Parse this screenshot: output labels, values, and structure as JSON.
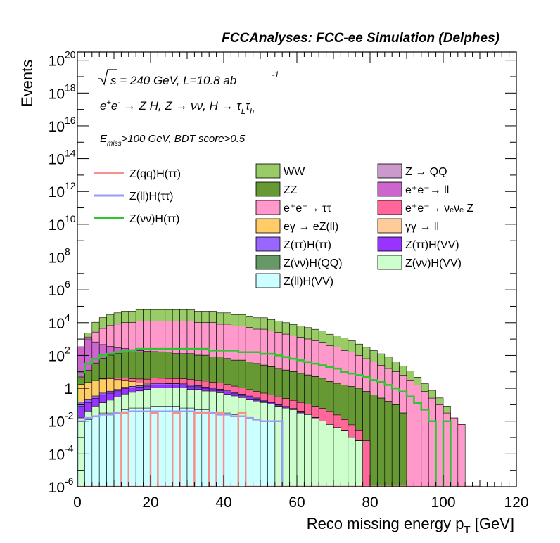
{
  "chart_data": {
    "type": "area",
    "title": "FCCAnalyses: FCC-ee Simulation (Delphes)",
    "xlabel": "Reco missing energy p",
    "xlabel_sub": "T",
    "xlabel_unit": "[GeV]",
    "ylabel": "Events",
    "xlim": [
      0,
      120
    ],
    "ylim_log10": [
      -6,
      20.5
    ],
    "y_scale": "log",
    "grid": false,
    "x_ticks": [
      "0",
      "20",
      "40",
      "60",
      "80",
      "100",
      "120"
    ],
    "y_tick_labels": [
      {
        "base": "10",
        "exp": "20",
        "log10": 20
      },
      {
        "base": "10",
        "exp": "18",
        "log10": 18
      },
      {
        "base": "10",
        "exp": "16",
        "log10": 16
      },
      {
        "base": "10",
        "exp": "14",
        "log10": 14
      },
      {
        "base": "10",
        "exp": "12",
        "log10": 12
      },
      {
        "base": "10",
        "exp": "10",
        "log10": 10
      },
      {
        "base": "10",
        "exp": "8",
        "log10": 8
      },
      {
        "base": "10",
        "exp": "6",
        "log10": 6
      },
      {
        "base": "10",
        "exp": "4",
        "log10": 4
      },
      {
        "base": "10",
        "exp": "2",
        "log10": 2
      },
      {
        "base": "1",
        "exp": "",
        "log10": 0
      },
      {
        "base": "10",
        "exp": "-2",
        "log10": -2
      },
      {
        "base": "10",
        "exp": "-4",
        "log10": -4
      },
      {
        "base": "10",
        "exp": "-6",
        "log10": -6
      }
    ],
    "annotations": {
      "sqrt": "s",
      "energy_lumi": " = 240 GeV, L=10.8 ab",
      "lumi_exp": "-1",
      "process": "e⁺e⁻ → Z H, Z → νν, H → τ_L τ_h",
      "cuts": "E_miss>100 GeV, BDT score>0.5"
    },
    "legend_lines": [
      {
        "name": "Z(qq)H(ττ)",
        "color": "#f5908c"
      },
      {
        "name": "Z(ll)H(ττ)",
        "color": "#9b9bf3"
      },
      {
        "name": "Z(νν)H(ττ)",
        "color": "#2ec62e"
      }
    ],
    "legend_fills": [
      {
        "name": "WW",
        "color": "#99cc66"
      },
      {
        "name": "Z → QQ",
        "color": "#cc99cc"
      },
      {
        "name": "ZZ",
        "color": "#669933"
      },
      {
        "name": "e⁺e⁻→ ll",
        "color": "#cc66cc"
      },
      {
        "name": "e⁺e⁻→ ττ",
        "color": "#ff99cc"
      },
      {
        "name": "e⁺e⁻→ νₑνₑ Z",
        "color": "#ff6699"
      },
      {
        "name": "eγ → eZ(ll)",
        "color": "#ffcc66"
      },
      {
        "name": "γγ → ll",
        "color": "#ffcc99"
      },
      {
        "name": "Z(ττ)H(ττ)",
        "color": "#9966ff"
      },
      {
        "name": "Z(ττ)H(VV)",
        "color": "#9933ff"
      },
      {
        "name": "Z(νν)H(QQ)",
        "color": "#669966"
      },
      {
        "name": "Z(νν)H(VV)",
        "color": "#ccffcc"
      },
      {
        "name": "Z(ll)H(VV)",
        "color": "#ccffff"
      }
    ],
    "x": [
      0,
      2,
      4,
      6,
      8,
      10,
      12,
      14,
      16,
      18,
      20,
      22,
      24,
      26,
      28,
      30,
      32,
      34,
      36,
      38,
      40,
      42,
      44,
      46,
      48,
      50,
      52,
      54,
      56,
      58,
      60,
      62,
      64,
      66,
      68,
      70,
      72,
      74,
      76,
      78,
      80,
      82,
      84,
      86,
      88,
      90,
      92,
      94,
      96,
      98,
      100,
      102,
      104,
      106,
      108
    ],
    "stack": [
      {
        "name": "Z(ll)H(VV)",
        "color": "#ccffff",
        "log10": [
          -6,
          -1.9,
          -1.7,
          -1.5,
          -1.5,
          -1.4,
          -1.3,
          -1.2,
          -1.2,
          -1.2,
          -1.1,
          -1.1,
          -1.1,
          -1.1,
          -1.2,
          -1.2,
          -1.3,
          -1.3,
          -1.4,
          -1.5,
          -1.5,
          -1.6,
          -1.7,
          -1.8,
          -2,
          -2,
          -2,
          -6,
          -6,
          -6,
          -6,
          -6,
          -6,
          -6,
          -6,
          -6,
          -6,
          -6,
          -6,
          -6,
          -6,
          -6,
          -6,
          -6,
          -6,
          -6,
          -6,
          -6,
          -6,
          -6,
          -6,
          -6,
          -6,
          -6,
          -6
        ]
      },
      {
        "name": "Z(νν)H(VV)",
        "color": "#ccffcc",
        "log10": [
          -1.8,
          -1.6,
          -1.2,
          -1,
          -0.8,
          -0.6,
          -0.4,
          -0.3,
          -0.2,
          -0.1,
          0,
          0,
          0,
          0,
          0,
          -0.1,
          -0.1,
          -0.2,
          -0.2,
          -0.3,
          -0.4,
          -0.5,
          -0.6,
          -0.7,
          -0.8,
          -0.9,
          -1,
          -1.1,
          -1.2,
          -1.3,
          -1.5,
          -1.6,
          -1.8,
          -2,
          -2.2,
          -2.4,
          -2.6,
          -3,
          -3.2,
          -6,
          -6,
          -6,
          -6,
          -6,
          -6,
          -6,
          -6,
          -6,
          -6,
          -6,
          -6,
          -6,
          -6,
          -6,
          -6
        ]
      },
      {
        "name": "Z(ττ)H(VV)",
        "color": "#9933ff",
        "log10": [
          -1.2,
          -1,
          -0.8,
          -0.6,
          -0.5,
          -0.4,
          -0.3,
          -0.3,
          -0.3,
          -0.3,
          -0.3,
          -0.3,
          -0.3,
          -0.3,
          -0.3,
          -0.4,
          -0.4,
          -0.5,
          -0.6,
          -0.7,
          -0.8,
          -0.9,
          -1,
          -1.1,
          -1.3,
          -1.5,
          -1.6,
          -1.8,
          -2,
          -2.2,
          -2.4,
          -2.6,
          -3,
          -6,
          -6,
          -6,
          -6,
          -6,
          -6,
          -6,
          -6,
          -6,
          -6,
          -6,
          -6,
          -6,
          -6,
          -6,
          -6,
          -6,
          -6,
          -6,
          -6,
          -6,
          -6
        ]
      },
      {
        "name": "Z(ττ)H(ττ)",
        "color": "#9966ff",
        "log10": [
          -1.2,
          -1.1,
          -1,
          -0.9,
          -0.8,
          -0.8,
          -0.7,
          -0.6,
          -0.6,
          -0.5,
          -0.4,
          -0.4,
          -0.5,
          -0.5,
          -0.6,
          -0.6,
          -0.7,
          -0.8,
          -0.8,
          -0.9,
          -1,
          -1.1,
          -1.2,
          -1.4,
          -1.5,
          -1.7,
          -1.9,
          -2.1,
          -2.3,
          -2.6,
          -3,
          -6,
          -6,
          -6,
          -6,
          -6,
          -6,
          -6,
          -6,
          -6,
          -6,
          -6,
          -6,
          -6,
          -6,
          -6,
          -6,
          -6,
          -6,
          -6,
          -6,
          -6,
          -6,
          -6,
          -6
        ]
      },
      {
        "name": "eγ → eZ(ll)",
        "color": "#ffcc66",
        "log10": [
          0.2,
          0.3,
          0.4,
          0.5,
          0.5,
          0.4,
          0.3,
          0.1,
          -0.2,
          -0.5,
          -0.8,
          -1.1,
          -1.4,
          -1.8,
          -2.2,
          -6,
          -6,
          -6,
          -6,
          -6,
          -6,
          -6,
          -6,
          -6,
          -6,
          -6,
          -6,
          -6,
          -6,
          -6,
          -6,
          -6,
          -6,
          -6,
          -6,
          -6,
          -6,
          -6,
          -6,
          -6,
          -6,
          -6,
          -6,
          -6,
          -6,
          -6,
          -6,
          -6,
          -6,
          -6,
          -6,
          -6,
          -6,
          -6,
          -6
        ]
      },
      {
        "name": "e⁺e⁻→ νₑνₑ Z",
        "color": "#ff6699",
        "log10": [
          -2,
          -1.5,
          -1,
          -0.6,
          -0.3,
          -0.1,
          0,
          0.1,
          0.2,
          0.2,
          0.3,
          0.3,
          0.3,
          0.3,
          0.3,
          0.3,
          0.2,
          0.2,
          0.1,
          0.1,
          0,
          -0.1,
          -0.2,
          -0.3,
          -0.4,
          -0.5,
          -0.6,
          -0.7,
          -0.8,
          -0.9,
          -1,
          -1.1,
          -1.2,
          -1.3,
          -1.5,
          -1.7,
          -2,
          -2.3,
          -2.7,
          -3.2,
          -6,
          -6,
          -6,
          -6,
          -6,
          -6,
          -6,
          -6,
          -6,
          -6,
          -6,
          -6,
          -6,
          -6,
          -6
        ]
      },
      {
        "name": "ZZ",
        "color": "#669933",
        "log10": [
          0.5,
          1,
          1.5,
          1.8,
          2,
          2.1,
          2.2,
          2.2,
          2.2,
          2.2,
          2.2,
          2.2,
          2.2,
          2.1,
          2.1,
          2.1,
          2,
          2,
          1.9,
          1.9,
          1.8,
          1.7,
          1.7,
          1.6,
          1.5,
          1.4,
          1.3,
          1.2,
          1.1,
          1,
          0.9,
          0.8,
          0.7,
          0.6,
          0.4,
          0.3,
          0.2,
          0.1,
          0,
          -0.2,
          -0.4,
          -0.6,
          -0.8,
          -1,
          -1.5,
          -6,
          -6,
          -6,
          -6,
          -6,
          -6,
          -6,
          -6,
          -6,
          -6
        ]
      },
      {
        "name": "e⁺e⁻→ ll",
        "color": "#cc66cc",
        "log10": [
          2.5,
          3,
          2.8,
          2.6,
          2.4,
          2.2,
          2,
          1.8,
          1.6,
          1.3,
          1,
          0.7,
          0.3,
          -0.2,
          -6,
          -6,
          -6,
          -6,
          -6,
          -6,
          -6,
          -6,
          -6,
          -6,
          -6,
          -6,
          -6,
          -6,
          -6,
          -6,
          -6,
          -6,
          -6,
          -6,
          -6,
          -6,
          -6,
          -6,
          -6,
          -6,
          -6,
          -6,
          -6,
          -6,
          -6,
          -6,
          -6,
          -6,
          -6,
          -6,
          -6,
          -6,
          -6,
          -6,
          -6
        ]
      },
      {
        "name": "e⁺e⁻→ ττ",
        "color": "#ff99cc",
        "log10": [
          1,
          2.5,
          3.3,
          3.6,
          3.8,
          3.9,
          4,
          4,
          4.1,
          4.1,
          4.1,
          4.1,
          4.1,
          4.1,
          4.1,
          4.1,
          4,
          4,
          4,
          3.9,
          3.9,
          3.8,
          3.8,
          3.7,
          3.6,
          3.6,
          3.5,
          3.4,
          3.3,
          3.2,
          3.1,
          3,
          2.9,
          2.8,
          2.6,
          2.5,
          2.3,
          2.2,
          2,
          1.8,
          1.6,
          1.4,
          1.2,
          1,
          0.8,
          0.5,
          0.2,
          -0.2,
          -0.6,
          -1,
          -1.5,
          -1.8,
          -2.2,
          -6,
          -6
        ]
      },
      {
        "name": "WW",
        "color": "#99cc66",
        "log10": [
          1,
          3,
          3.9,
          4.2,
          4.4,
          4.5,
          4.6,
          4.6,
          4.7,
          4.7,
          4.7,
          4.7,
          4.7,
          4.7,
          4.7,
          4.7,
          4.6,
          4.6,
          4.6,
          4.5,
          4.5,
          4.4,
          4.4,
          4.3,
          4.2,
          4.2,
          4.1,
          4,
          3.9,
          3.8,
          3.7,
          3.6,
          3.5,
          3.4,
          3.2,
          3.1,
          3,
          2.8,
          2.6,
          2.4,
          2.2,
          2,
          1.8,
          1.5,
          1.2,
          0.9,
          0.5,
          0.1,
          -0.3,
          -0.8,
          -1.3,
          -6,
          -6,
          -6,
          -6
        ]
      }
    ],
    "signal_lines": [
      {
        "name": "Z(νν)H(ττ)",
        "color": "#2ec62e",
        "log10": [
          1,
          1.5,
          1.8,
          2,
          2.1,
          2.2,
          2.3,
          2.3,
          2.4,
          2.4,
          2.4,
          2.4,
          2.4,
          2.4,
          2.4,
          2.4,
          2.4,
          2.4,
          2.3,
          2.3,
          2.3,
          2.3,
          2.2,
          2.2,
          2.2,
          2.1,
          2.1,
          2,
          1.9,
          1.8,
          1.7,
          1.6,
          1.5,
          1.4,
          1.3,
          1.2,
          1,
          0.9,
          0.8,
          0.7,
          0.5,
          0.4,
          0.2,
          0,
          -0.2,
          -0.5,
          -0.9,
          -1.3,
          -2,
          -6,
          -2,
          -6,
          -6,
          -6,
          -6
        ]
      },
      {
        "name": "Z(ll)H(ττ)",
        "color": "#9b9bf3",
        "log10": [
          -2,
          -1.8,
          -1.7,
          -1.6,
          -1.6,
          -1.5,
          -1.5,
          -1.4,
          -1.4,
          -1.4,
          -1.4,
          -1.4,
          -1.4,
          -1.4,
          -1.4,
          -1.4,
          -1.5,
          -1.5,
          -1.5,
          -1.6,
          -1.6,
          -1.7,
          -1.7,
          -1.8,
          -1.9,
          -2,
          -2,
          -2,
          -6,
          -6,
          -6,
          -6,
          -6,
          -6,
          -6,
          -6,
          -6,
          -6,
          -6,
          -6,
          -6,
          -6,
          -6,
          -6,
          -6,
          -6,
          -6,
          -6,
          -6,
          -6,
          -6,
          -6,
          -6,
          -6,
          -6
        ]
      },
      {
        "name": "Z(qq)H(ττ)",
        "color": "#f5908c",
        "log10": [
          -6,
          -6,
          -6,
          -6,
          -6,
          -6,
          -1.5,
          -6,
          -6,
          -6,
          -1.5,
          -6,
          -6,
          -1.5,
          -6,
          -6,
          -1.5,
          -1.5,
          -6,
          -1.5,
          -6,
          -6,
          -1.5,
          -6,
          -6,
          -6,
          -6,
          -6,
          -6,
          -6,
          -6,
          -6,
          -6,
          -6,
          -6,
          -6,
          -6,
          -6,
          -6,
          -6,
          -6,
          -6,
          -6,
          -6,
          -6,
          -6,
          -6,
          -6,
          -6,
          -6,
          -6,
          -6,
          -6,
          -6,
          -6
        ]
      }
    ]
  }
}
